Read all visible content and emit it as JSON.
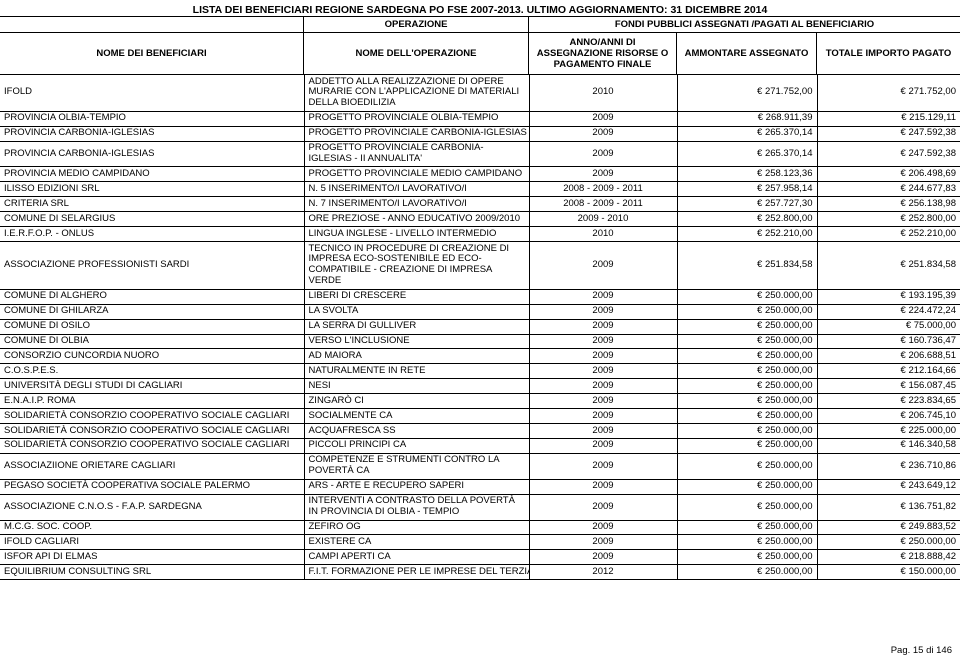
{
  "title": "LISTA DEI BENEFICIARI REGIONE SARDEGNA PO FSE 2007-2013. ULTIMO AGGIORNAMENTO: 31 DICEMBRE 2014",
  "header": {
    "operazione": "OPERAZIONE",
    "fondi": "FONDI PUBBLICI ASSEGNATI /PAGATI AL BENEFICIARIO",
    "col1": "NOME DEI BENEFICIARI",
    "col2": "NOME DELL'OPERAZIONE",
    "col3": "ANNO/ANNI DI ASSEGNAZIONE RISORSE O PAGAMENTO FINALE",
    "col4": "AMMONTARE ASSEGNATO",
    "col5": "TOTALE IMPORTO PAGATO"
  },
  "rows": [
    {
      "b": "IFOLD",
      "o": "ADDETTO ALLA REALIZZAZIONE DI OPERE MURARIE CON L'APPLICAZIONE DI MATERIALI DELLA BIOEDILIZIA",
      "y": "2010",
      "a": "€ 271.752,00",
      "t": "€ 271.752,00",
      "wrap": true
    },
    {
      "b": "PROVINCIA OLBIA-TEMPIO",
      "o": "PROGETTO PROVINCIALE OLBIA-TEMPIO",
      "y": "2009",
      "a": "€ 268.911,39",
      "t": "€ 215.129,11"
    },
    {
      "b": "PROVINCIA CARBONIA-IGLESIAS",
      "o": "PROGETTO PROVINCIALE CARBONIA-IGLESIAS",
      "y": "2009",
      "a": "€ 265.370,14",
      "t": "€ 247.592,38"
    },
    {
      "b": "PROVINCIA CARBONIA-IGLESIAS",
      "o": "PROGETTO PROVINCIALE CARBONIA-IGLESIAS - II ANNUALITA'",
      "y": "2009",
      "a": "€ 265.370,14",
      "t": "€ 247.592,38",
      "wrap": true
    },
    {
      "b": "PROVINCIA MEDIO CAMPIDANO",
      "o": "PROGETTO PROVINCIALE MEDIO CAMPIDANO",
      "y": "2009",
      "a": "€ 258.123,36",
      "t": "€ 206.498,69"
    },
    {
      "b": "ILISSO EDIZIONI SRL",
      "o": "N. 5 INSERIMENTO/I LAVORATIVO/I",
      "y": "2008 - 2009 - 2011",
      "a": "€ 257.958,14",
      "t": "€ 244.677,83"
    },
    {
      "b": "CRITERIA SRL",
      "o": "N. 7 INSERIMENTO/I LAVORATIVO/I",
      "y": "2008 - 2009 - 2011",
      "a": "€ 257.727,30",
      "t": "€ 256.138,98"
    },
    {
      "b": "COMUNE DI SELARGIUS",
      "o": "ORE PREZIOSE - ANNO EDUCATIVO 2009/2010",
      "y": "2009 - 2010",
      "a": "€ 252.800,00",
      "t": "€ 252.800,00"
    },
    {
      "b": "I.E.R.F.O.P. - ONLUS",
      "o": "LINGUA INGLESE - LIVELLO INTERMEDIO",
      "y": "2010",
      "a": "€ 252.210,00",
      "t": "€ 252.210,00"
    },
    {
      "b": "ASSOCIAZIONE PROFESSIONISTI SARDI",
      "o": "TECNICO IN PROCEDURE DI CREAZIONE DI IMPRESA ECO-SOSTENIBILE ED ECO-COMPATIBILE - CREAZIONE DI IMPRESA VERDE",
      "y": "2009",
      "a": "€ 251.834,58",
      "t": "€ 251.834,58",
      "wrap": true
    },
    {
      "b": "COMUNE DI ALGHERO",
      "o": "LIBERI DI CRESCERE",
      "y": "2009",
      "a": "€ 250.000,00",
      "t": "€ 193.195,39"
    },
    {
      "b": "COMUNE DI GHILARZA",
      "o": "LA SVOLTA",
      "y": "2009",
      "a": "€ 250.000,00",
      "t": "€ 224.472,24"
    },
    {
      "b": "COMUNE DI OSILO",
      "o": "LA SERRA DI GULLIVER",
      "y": "2009",
      "a": "€ 250.000,00",
      "t": "€ 75.000,00"
    },
    {
      "b": "COMUNE DI OLBIA",
      "o": "VERSO L'INCLUSIONE",
      "y": "2009",
      "a": "€ 250.000,00",
      "t": "€ 160.736,47"
    },
    {
      "b": "CONSORZIO CUNCORDIA NUORO",
      "o": "AD MAIORA",
      "y": "2009",
      "a": "€ 250.000,00",
      "t": "€ 206.688,51"
    },
    {
      "b": "C.O.S.P.E.S.",
      "o": "NATURALMENTE IN RETE",
      "y": "2009",
      "a": "€ 250.000,00",
      "t": "€ 212.164,66"
    },
    {
      "b": "UNIVERSITÀ DEGLI STUDI DI CAGLIARI",
      "o": "NESI",
      "y": "2009",
      "a": "€ 250.000,00",
      "t": "€ 156.087,45"
    },
    {
      "b": "E.N.A.I.P. ROMA",
      "o": "ZINGARÒ CI",
      "y": "2009",
      "a": "€ 250.000,00",
      "t": "€ 223.834,65"
    },
    {
      "b": "SOLIDARIETÀ CONSORZIO COOPERATIVO SOCIALE CAGLIARI",
      "o": "SOCIALMENTE CA",
      "y": "2009",
      "a": "€ 250.000,00",
      "t": "€ 206.745,10"
    },
    {
      "b": "SOLIDARIETÀ CONSORZIO COOPERATIVO SOCIALE CAGLIARI",
      "o": "ACQUAFRESCA SS",
      "y": "2009",
      "a": "€ 250.000,00",
      "t": "€ 225.000,00"
    },
    {
      "b": "SOLIDARIETÀ CONSORZIO COOPERATIVO SOCIALE CAGLIARI",
      "o": "PICCOLI PRINCIPI CA",
      "y": "2009",
      "a": "€ 250.000,00",
      "t": "€ 146.340,58"
    },
    {
      "b": "ASSOCIAZIIONE ORIETARE CAGLIARI",
      "o": "COMPETENZE E STRUMENTI CONTRO LA POVERTÀ CA",
      "y": "2009",
      "a": "€ 250.000,00",
      "t": "€ 236.710,86",
      "wrap": true
    },
    {
      "b": "PEGASO SOCIETÀ COOPERATIVA SOCIALE PALERMO",
      "o": "ARS - ARTE E RECUPERO SAPERI",
      "y": "2009",
      "a": "€ 250.000,00",
      "t": "€ 243.649,12"
    },
    {
      "b": "ASSOCIAZIONE C.N.O.S - F.A.P. SARDEGNA",
      "o": "INTERVENTI A CONTRASTO DELLA POVERTÀ IN PROVINCIA DI OLBIA - TEMPIO",
      "y": "2009",
      "a": "€ 250.000,00",
      "t": "€ 136.751,82",
      "wrap": true
    },
    {
      "b": "M.C.G. SOC. COOP.",
      "o": "ZEFIRO OG",
      "y": "2009",
      "a": "€ 250.000,00",
      "t": "€ 249.883,52"
    },
    {
      "b": "IFOLD CAGLIARI",
      "o": "EXISTERE CA",
      "y": "2009",
      "a": "€ 250.000,00",
      "t": "€ 250.000,00"
    },
    {
      "b": "ISFOR API DI ELMAS",
      "o": "CAMPI APERTI CA",
      "y": "2009",
      "a": "€ 250.000,00",
      "t": "€ 218.888,42"
    },
    {
      "b": "EQUILIBRIUM CONSULTING SRL",
      "o": "F.I.T. FORMAZIONE PER LE IMPRESE DEL TERZIARIO",
      "y": "2012",
      "a": "€ 250.000,00",
      "t": "€ 150.000,00"
    }
  ],
  "footer": "Pag. 15 di 146"
}
